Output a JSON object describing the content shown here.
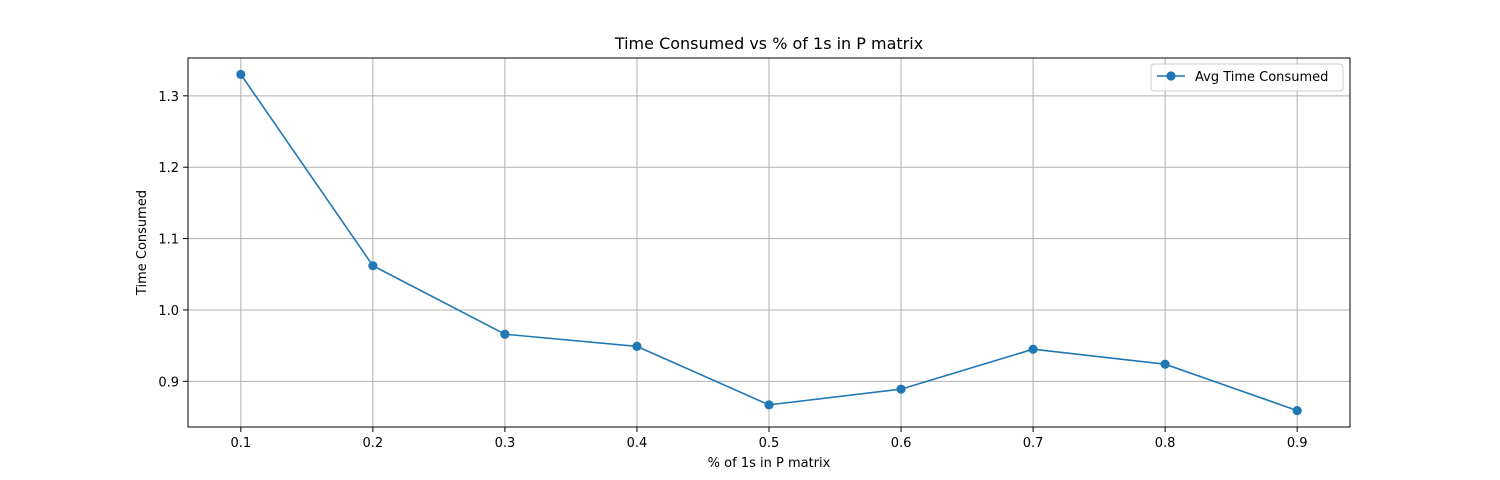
{
  "chart_data": {
    "type": "line",
    "title": "Time Consumed vs % of 1s in P matrix",
    "xlabel": "% of 1s in P matrix",
    "ylabel": "Time Consumed",
    "x": [
      0.1,
      0.2,
      0.3,
      0.4,
      0.5,
      0.6,
      0.7,
      0.8,
      0.9
    ],
    "x_tick_labels": [
      "0.1",
      "0.2",
      "0.3",
      "0.4",
      "0.5",
      "0.6",
      "0.7",
      "0.8",
      "0.9"
    ],
    "y_ticks": [
      0.9,
      1.0,
      1.1,
      1.2,
      1.3
    ],
    "y_tick_labels": [
      "0.9",
      "1.0",
      "1.1",
      "1.2",
      "1.3"
    ],
    "xlim": [
      0.06,
      0.94
    ],
    "ylim": [
      0.836,
      1.353
    ],
    "grid": true,
    "legend_position": "top-right",
    "series": [
      {
        "name": "Avg Time Consumed",
        "color": "#1f77b4",
        "marker": "circle",
        "values": [
          1.33,
          1.062,
          0.966,
          0.949,
          0.867,
          0.889,
          0.945,
          0.924,
          0.859
        ]
      }
    ]
  }
}
